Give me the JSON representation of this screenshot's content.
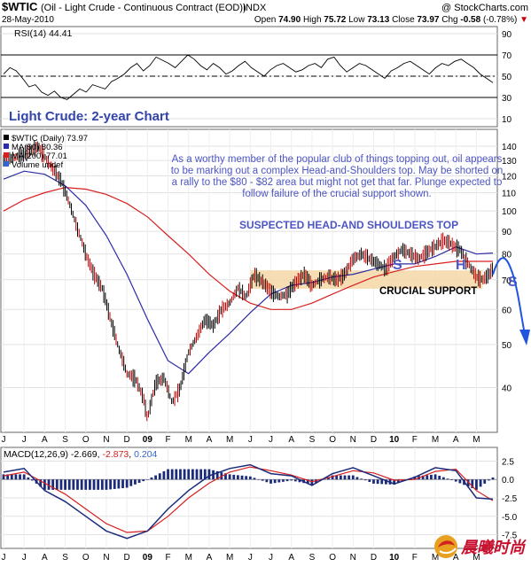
{
  "header": {
    "symbol": "$WTIC",
    "name": "(Oil - Light Crude - Continuous Contract (EOD))",
    "exchange": "INDX",
    "brand": "@ StockCharts.com",
    "date": "28-May-2010",
    "quote": {
      "open": "74.90",
      "high": "75.72",
      "low": "73.13",
      "close": "73.97",
      "chg": "-0.58",
      "chg_pct": "(-0.78%)"
    },
    "labels": {
      "open": "Open",
      "high": "High",
      "low": "Low",
      "close": "Close",
      "chg": "Chg"
    },
    "quote_arrow": "▼"
  },
  "chart_title": "Light Crude: 2-year Chart",
  "annotations": {
    "note": "As a worthy member of the popular club of things topping out, oil appears to be marking out a complex Head-and-Shoulders top. May be shorted on a rally to the $80 - $82 area but might not get that far. Plunge expected to follow failure of the crucial support shown.",
    "pattern_title": "SUSPECTED HEAD-AND SHOULDERS TOP",
    "support_label": "CRUCIAL SUPPORT",
    "letters": [
      "S",
      "H",
      "S"
    ]
  },
  "colors": {
    "price": "#000000",
    "ma50": "#2b2ba6",
    "ma200": "#d62020",
    "macd": "#1b2b7a",
    "signal": "#d62020",
    "histogram": "#1b2b7a",
    "support_band": "#f5d7a6",
    "annotation_blue": "#4d55c4",
    "title_blue": "#3344aa",
    "projection": "#2255dd"
  },
  "chart_data": [
    {
      "type": "line",
      "title": "RSI(14) 44.41",
      "legend": [
        {
          "name": "RSI(14)",
          "value": "44.41"
        }
      ],
      "yticks": [
        10,
        30,
        50,
        70,
        90
      ],
      "ylim": [
        5,
        95
      ],
      "guides": [
        30,
        50,
        70
      ],
      "series": [
        {
          "name": "RSI(14)",
          "y": [
            52,
            58,
            55,
            48,
            40,
            42,
            35,
            32,
            36,
            30,
            28,
            33,
            38,
            35,
            42,
            40,
            38,
            45,
            48,
            52,
            58,
            62,
            55,
            60,
            68,
            65,
            62,
            58,
            64,
            70,
            66,
            60,
            56,
            62,
            58,
            52,
            55,
            60,
            64,
            58,
            54,
            50,
            56,
            60,
            62,
            58,
            54,
            56,
            60,
            62,
            58,
            66,
            68,
            60,
            54,
            58,
            62,
            60,
            56,
            52,
            48,
            55,
            58,
            62,
            64,
            60,
            56,
            52,
            58,
            62,
            60,
            64,
            66,
            62,
            58,
            52,
            48,
            44
          ]
        }
      ]
    },
    {
      "type": "line",
      "title": "$WTIC (Daily) 73.97",
      "legend": [
        {
          "name": "$WTIC (Daily)",
          "value": "73.97"
        },
        {
          "name": "MA(50)",
          "value": "80.36"
        },
        {
          "name": "MA(200)",
          "value": "77.01"
        },
        {
          "name": "Volume undef",
          "value": ""
        }
      ],
      "x": [
        "J",
        "J",
        "A",
        "S",
        "O",
        "N",
        "D",
        "09",
        "F",
        "M",
        "A",
        "M",
        "J",
        "J",
        "A",
        "S",
        "O",
        "N",
        "D",
        "10",
        "F",
        "M",
        "A",
        "M"
      ],
      "yticks": [
        40,
        50,
        60,
        70,
        80,
        90,
        100,
        110,
        120,
        130,
        140
      ],
      "support_level": 70,
      "price_pts": [
        [
          0,
          130
        ],
        [
          1,
          134
        ],
        [
          1.7,
          140
        ],
        [
          2.2,
          128
        ],
        [
          2.8,
          117
        ],
        [
          3.2,
          104
        ],
        [
          3.6,
          91
        ],
        [
          4,
          80
        ],
        [
          4.4,
          72
        ],
        [
          4.8,
          67
        ],
        [
          5.2,
          57
        ],
        [
          5.6,
          49
        ],
        [
          6,
          43
        ],
        [
          6.4,
          42
        ],
        [
          6.8,
          38
        ],
        [
          7,
          34
        ],
        [
          7.4,
          41
        ],
        [
          7.8,
          42
        ],
        [
          8.2,
          37
        ],
        [
          8.6,
          40
        ],
        [
          9,
          48
        ],
        [
          9.4,
          52
        ],
        [
          9.8,
          57
        ],
        [
          10.2,
          55
        ],
        [
          10.6,
          60
        ],
        [
          11,
          62
        ],
        [
          11.4,
          67
        ],
        [
          11.8,
          64
        ],
        [
          12.2,
          72
        ],
        [
          12.6,
          69
        ],
        [
          13,
          66
        ],
        [
          13.4,
          64
        ],
        [
          13.8,
          65
        ],
        [
          14.2,
          69
        ],
        [
          14.6,
          72
        ],
        [
          15,
          68
        ],
        [
          15.4,
          70
        ],
        [
          15.8,
          71
        ],
        [
          16.2,
          70
        ],
        [
          16.6,
          72
        ],
        [
          17,
          78
        ],
        [
          17.4,
          80
        ],
        [
          17.8,
          78
        ],
        [
          18.2,
          76
        ],
        [
          18.6,
          74
        ],
        [
          19,
          79
        ],
        [
          19.4,
          82
        ],
        [
          19.8,
          80
        ],
        [
          20.2,
          78
        ],
        [
          20.6,
          81
        ],
        [
          21,
          83
        ],
        [
          21.4,
          86
        ],
        [
          21.8,
          84
        ],
        [
          22.2,
          82
        ],
        [
          22.6,
          76
        ],
        [
          23,
          71
        ],
        [
          23.3,
          70
        ],
        [
          23.6,
          72
        ],
        [
          23.8,
          74
        ]
      ],
      "ma50_pts": [
        [
          0,
          118
        ],
        [
          1,
          123
        ],
        [
          2,
          121
        ],
        [
          3,
          114
        ],
        [
          4,
          103
        ],
        [
          5,
          88
        ],
        [
          6,
          72
        ],
        [
          7,
          57
        ],
        [
          8,
          46
        ],
        [
          9,
          43
        ],
        [
          10,
          48
        ],
        [
          11,
          53
        ],
        [
          12,
          59
        ],
        [
          13,
          65
        ],
        [
          14,
          68
        ],
        [
          15,
          69
        ],
        [
          16,
          71
        ],
        [
          17,
          72
        ],
        [
          18,
          74
        ],
        [
          19,
          76
        ],
        [
          20,
          76
        ],
        [
          21,
          79
        ],
        [
          22,
          83
        ],
        [
          23,
          80
        ],
        [
          23.8,
          80.4
        ]
      ],
      "ma200_pts": [
        [
          0,
          100
        ],
        [
          1,
          106
        ],
        [
          2,
          110
        ],
        [
          3,
          113
        ],
        [
          4,
          112
        ],
        [
          5,
          109
        ],
        [
          6,
          104
        ],
        [
          7,
          97
        ],
        [
          8,
          88
        ],
        [
          9,
          80
        ],
        [
          10,
          72
        ],
        [
          11,
          66
        ],
        [
          12,
          62
        ],
        [
          13,
          60
        ],
        [
          14,
          60
        ],
        [
          15,
          62
        ],
        [
          16,
          65
        ],
        [
          17,
          68
        ],
        [
          18,
          71
        ],
        [
          19,
          73
        ],
        [
          20,
          75
        ],
        [
          21,
          76
        ],
        [
          22,
          77
        ],
        [
          23,
          77
        ],
        [
          23.8,
          77
        ]
      ]
    },
    {
      "type": "line",
      "title": "MACD(12,26,9) -2.669, -2.873, 0.204",
      "legend": [
        {
          "name": "MACD(12,26,9)",
          "value": "-2.669"
        },
        {
          "name": "",
          "value": "-2.873"
        },
        {
          "name": "",
          "value": "0.204"
        }
      ],
      "x": [
        "J",
        "J",
        "A",
        "S",
        "O",
        "N",
        "D",
        "09",
        "F",
        "M",
        "A",
        "M",
        "J",
        "J",
        "A",
        "S",
        "O",
        "N",
        "D",
        "10",
        "F",
        "M",
        "A",
        "M"
      ],
      "yticks": [
        -7.5,
        -5.0,
        -2.5,
        0.0,
        2.5
      ],
      "ylim": [
        -9,
        4
      ],
      "series": [
        {
          "name": "MACD",
          "pts": [
            [
              0,
              1
            ],
            [
              1,
              1.5
            ],
            [
              2,
              -1.5
            ],
            [
              3,
              -3
            ],
            [
              4,
              -5
            ],
            [
              5,
              -7
            ],
            [
              6,
              -8
            ],
            [
              7,
              -7
            ],
            [
              8,
              -4
            ],
            [
              9,
              -1.5
            ],
            [
              10,
              0.5
            ],
            [
              11,
              1.5
            ],
            [
              12,
              2
            ],
            [
              13,
              0.8
            ],
            [
              14,
              0.5
            ],
            [
              15,
              -0.8
            ],
            [
              16,
              0.8
            ],
            [
              17,
              1.6
            ],
            [
              18,
              0.5
            ],
            [
              19,
              -0.6
            ],
            [
              20,
              0.3
            ],
            [
              21,
              1.6
            ],
            [
              22,
              1.2
            ],
            [
              23,
              -2.5
            ],
            [
              23.8,
              -2.67
            ]
          ]
        },
        {
          "name": "Signal",
          "pts": [
            [
              0,
              0.5
            ],
            [
              1,
              1
            ],
            [
              2,
              -0.5
            ],
            [
              3,
              -2
            ],
            [
              4,
              -4
            ],
            [
              5,
              -6
            ],
            [
              6,
              -7.2
            ],
            [
              7,
              -7
            ],
            [
              8,
              -5
            ],
            [
              9,
              -2.5
            ],
            [
              10,
              -0.5
            ],
            [
              11,
              1
            ],
            [
              12,
              1.7
            ],
            [
              13,
              1.2
            ],
            [
              14,
              0.6
            ],
            [
              15,
              -0.3
            ],
            [
              16,
              0.4
            ],
            [
              17,
              1.2
            ],
            [
              18,
              0.9
            ],
            [
              19,
              -0.1
            ],
            [
              20,
              0
            ],
            [
              21,
              1.1
            ],
            [
              22,
              1.4
            ],
            [
              23,
              -1.5
            ],
            [
              23.8,
              -2.87
            ]
          ]
        }
      ]
    }
  ]
}
